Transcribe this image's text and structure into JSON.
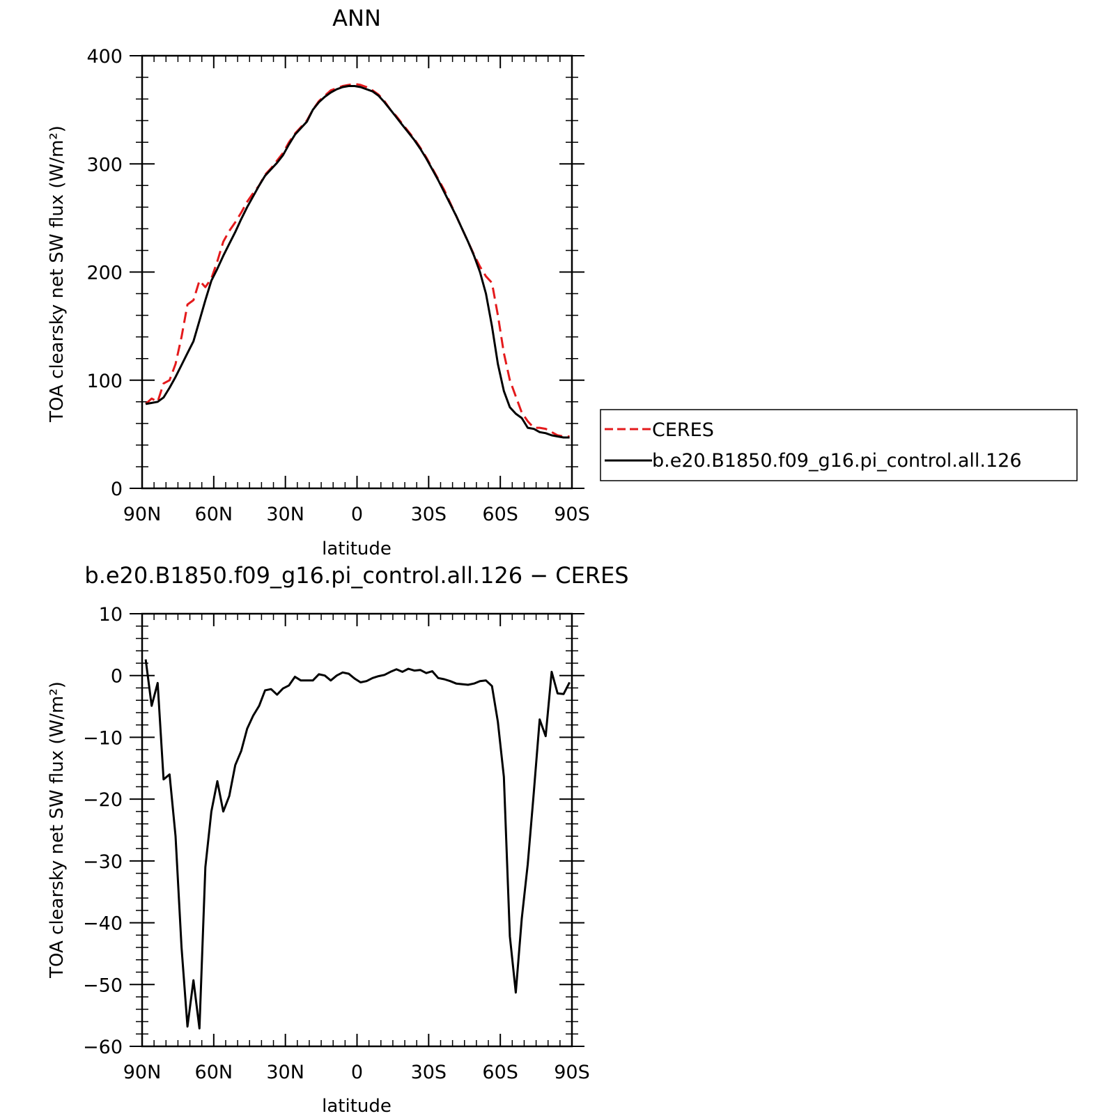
{
  "chart_data": [
    {
      "type": "line",
      "title": "ANN",
      "xlabel": "latitude",
      "ylabel": "TOA clearsky net SW flux (W/m²)",
      "xlim": [
        -90,
        90
      ],
      "ylim": [
        0,
        400
      ],
      "x_ticks": [
        -90,
        -60,
        -30,
        0,
        30,
        60,
        90
      ],
      "x_tick_labels": [
        "90N",
        "60N",
        "30N",
        "0",
        "30S",
        "60S",
        "90S"
      ],
      "y_ticks": [
        0,
        100,
        200,
        300,
        400
      ],
      "y_tick_labels": [
        "0",
        "100",
        "200",
        "300",
        "400"
      ],
      "grid": false,
      "legend_position": "right",
      "series": [
        {
          "name": "CERES",
          "color": "#e41a1c",
          "dash": "dashed",
          "x": [
            -88.5,
            -86,
            -83.5,
            -81,
            -78.5,
            -76,
            -73.5,
            -71,
            -68.5,
            -66,
            -63.5,
            -61,
            -58.5,
            -56,
            -53.5,
            -51,
            -48.5,
            -46,
            -43.5,
            -41,
            -38.5,
            -36,
            -33.5,
            -31,
            -28.5,
            -26,
            -23.5,
            -21,
            -18.5,
            -16,
            -13.5,
            -11,
            -8.5,
            -6,
            -3.5,
            -1,
            1.5,
            4,
            6.5,
            9,
            11.5,
            14,
            16.5,
            19,
            21.5,
            24,
            26.5,
            29,
            31.5,
            34,
            36.5,
            39,
            41.5,
            44,
            46.5,
            49,
            51.5,
            54,
            56.5,
            59,
            61.5,
            64,
            66.5,
            69,
            71.5,
            74,
            76.5,
            79,
            81.5,
            84,
            86.5,
            89
          ],
          "y": [
            78,
            83,
            80,
            97,
            100,
            115,
            140,
            170,
            174,
            192,
            186,
            194,
            210,
            228,
            238,
            246,
            255,
            265,
            273,
            280,
            290,
            296,
            303,
            310,
            320,
            328,
            334,
            340,
            350,
            358,
            363,
            368,
            370,
            372,
            373,
            374,
            373,
            371,
            368,
            364,
            358,
            350,
            344,
            337,
            330,
            323,
            315,
            306,
            296,
            286,
            276,
            264,
            252,
            240,
            228,
            216,
            205,
            196,
            190,
            160,
            125,
            100,
            85,
            70,
            62,
            56,
            56,
            55,
            52,
            49,
            48,
            48
          ]
        },
        {
          "name": "b.e20.B1850.f09_g16.pi_control.all.126",
          "color": "#000000",
          "dash": "solid",
          "x": [
            -88.5,
            -86,
            -83.5,
            -81,
            -78.5,
            -76,
            -73.5,
            -71,
            -68.5,
            -66,
            -63.5,
            -61,
            -58.5,
            -56,
            -53.5,
            -51,
            -48.5,
            -46,
            -43.5,
            -41,
            -38.5,
            -36,
            -33.5,
            -31,
            -28.5,
            -26,
            -23.5,
            -21,
            -18.5,
            -16,
            -13.5,
            -11,
            -8.5,
            -6,
            -3.5,
            -1,
            1.5,
            4,
            6.5,
            9,
            11.5,
            14,
            16.5,
            19,
            21.5,
            24,
            26.5,
            29,
            31.5,
            34,
            36.5,
            39,
            41.5,
            44,
            46.5,
            49,
            51.5,
            54,
            56.5,
            59,
            61.5,
            64,
            66.5,
            69,
            71.5,
            74,
            76.5,
            79,
            81.5,
            84,
            86.5,
            89
          ],
          "y": [
            78,
            79,
            80,
            84,
            93,
            103,
            114,
            125,
            136,
            155,
            174,
            192,
            203,
            215,
            226,
            237,
            249,
            260,
            270,
            280,
            289,
            295,
            301,
            308,
            318,
            327,
            333,
            339,
            350,
            357,
            362,
            366,
            369,
            371,
            372,
            372,
            371,
            369,
            367,
            363,
            357,
            350,
            343,
            336,
            329,
            322,
            314,
            305,
            295,
            285,
            274,
            263,
            252,
            240,
            228,
            215,
            200,
            180,
            150,
            115,
            90,
            75,
            69,
            65,
            56,
            55,
            52,
            51,
            49,
            48,
            47,
            47
          ]
        }
      ]
    },
    {
      "type": "line",
      "title": "b.e20.B1850.f09_g16.pi_control.all.126 − CERES",
      "xlabel": "latitude",
      "ylabel": "TOA clearsky net SW flux (W/m²)",
      "xlim": [
        -90,
        90
      ],
      "ylim": [
        -60,
        10
      ],
      "x_ticks": [
        -90,
        -60,
        -30,
        0,
        30,
        60,
        90
      ],
      "x_tick_labels": [
        "90N",
        "60N",
        "30N",
        "0",
        "30S",
        "60S",
        "90S"
      ],
      "y_ticks": [
        -60,
        -50,
        -40,
        -30,
        -20,
        -10,
        0,
        10
      ],
      "y_tick_labels": [
        "−60",
        "−50",
        "−40",
        "−30",
        "−20",
        "−10",
        "0",
        "10"
      ],
      "grid": false,
      "series": [
        {
          "color": "#000000",
          "dash": "solid",
          "x": [
            -88.5,
            -86,
            -83.5,
            -81,
            -78.5,
            -76,
            -73.5,
            -71,
            -68.5,
            -66,
            -63.5,
            -61,
            -58.5,
            -56,
            -53.5,
            -51,
            -48.5,
            -46,
            -43.5,
            -41,
            -38.5,
            -36,
            -33.5,
            -31,
            -28.5,
            -26,
            -23.5,
            -21,
            -18.5,
            -16,
            -13.5,
            -11,
            -8.5,
            -6,
            -3.5,
            -1,
            1.5,
            4,
            6.5,
            9,
            11.5,
            14,
            16.5,
            19,
            21.5,
            24,
            26.5,
            29,
            31.5,
            34,
            36.5,
            39,
            41.5,
            44,
            46.5,
            49,
            51.5,
            54,
            56.5,
            59,
            61.5,
            64,
            66.5,
            69,
            71.5,
            74,
            76.5,
            79,
            81.5,
            84,
            86.5,
            89
          ],
          "y": [
            2.6,
            -4.9,
            -1.2,
            -16.8,
            -16,
            -26,
            -44,
            -56.8,
            -49.3,
            -57.1,
            -31,
            -22,
            -17.1,
            -22,
            -19.5,
            -14.5,
            -12.2,
            -8.6,
            -6.5,
            -4.9,
            -2.4,
            -2.2,
            -3.1,
            -2.1,
            -1.6,
            -0.2,
            -0.8,
            -0.8,
            -0.8,
            0.2,
            0,
            -0.8,
            0,
            0.5,
            0.3,
            -0.5,
            -1.1,
            -0.9,
            -0.4,
            -0.1,
            0.1,
            0.6,
            1,
            0.6,
            1.1,
            0.8,
            0.9,
            0.4,
            0.7,
            -0.4,
            -0.6,
            -0.9,
            -1.3,
            -1.4,
            -1.5,
            -1.3,
            -0.9,
            -0.8,
            -1.7,
            -7.5,
            -16.4,
            -42.2,
            -51.3,
            -39.3,
            -30.5,
            -19,
            -7.1,
            -9.8,
            0.6,
            -2.9,
            -3,
            -1.1
          ]
        }
      ]
    }
  ]
}
